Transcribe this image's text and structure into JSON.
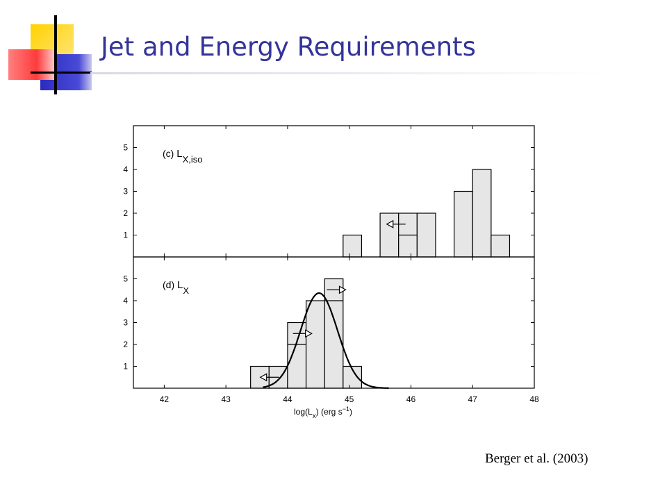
{
  "slide": {
    "title": "Jet and Energy Requirements",
    "citation": "Berger et al. (2003)",
    "colors": {
      "title": "#333399",
      "logo_yellow": "#ffcc00",
      "logo_red": "#ff3333",
      "logo_blue": "#3333cc",
      "bar_fill": "#e6e6e6"
    }
  },
  "chart_data": [
    {
      "type": "bar",
      "panel_label": "(c)",
      "quantity": "L",
      "quantity_subscript": "X,iso",
      "xlim": [
        41.5,
        48
      ],
      "ylim": [
        0,
        6
      ],
      "x_ticks": [
        "42",
        "43",
        "44",
        "45",
        "46",
        "47",
        "48"
      ],
      "y_ticks": [
        "1",
        "2",
        "3",
        "4",
        "5"
      ],
      "bin_width": 0.3,
      "bins": [
        {
          "start": 44.9,
          "count": 1
        },
        {
          "start": 45.5,
          "count": 2
        },
        {
          "start": 45.8,
          "count": 2,
          "divided_at": 1
        },
        {
          "start": 46.1,
          "count": 2
        },
        {
          "start": 46.7,
          "count": 3
        },
        {
          "start": 47.0,
          "count": 4
        },
        {
          "start": 47.3,
          "count": 1
        }
      ],
      "limit_markers": [
        {
          "x": 45.8,
          "y": 1.5,
          "direction": "left"
        }
      ]
    },
    {
      "type": "bar",
      "panel_label": "(d)",
      "quantity": "L",
      "quantity_subscript": "X",
      "xlim": [
        41.5,
        48
      ],
      "ylim": [
        0,
        6
      ],
      "x_ticks": [
        "42",
        "43",
        "44",
        "45",
        "46",
        "47",
        "48"
      ],
      "y_ticks": [
        "1",
        "2",
        "3",
        "4",
        "5"
      ],
      "xlabel": "log(L",
      "xlabel_subscript": "x",
      "xlabel_units": ") (erg s",
      "xlabel_units_superscript": "−1",
      "xlabel_end": ")",
      "bin_width": 0.3,
      "bins": [
        {
          "start": 43.4,
          "count": 1
        },
        {
          "start": 43.7,
          "count": 1
        },
        {
          "start": 44.0,
          "count": 3,
          "divided_at": 2
        },
        {
          "start": 44.3,
          "count": 4
        },
        {
          "start": 44.6,
          "count": 5,
          "divided_at": 4
        },
        {
          "start": 44.9,
          "count": 1
        }
      ],
      "limit_markers": [
        {
          "x": 43.75,
          "y": 0.5,
          "direction": "left"
        },
        {
          "x": 44.2,
          "y": 2.5,
          "direction": "right"
        },
        {
          "x": 44.75,
          "y": 4.5,
          "direction": "right"
        }
      ],
      "fit_curve": {
        "type": "gaussian",
        "mean": 44.51,
        "sigma": 0.3,
        "peak": 4.35,
        "x_range": [
          43.6,
          45.65
        ]
      }
    }
  ]
}
